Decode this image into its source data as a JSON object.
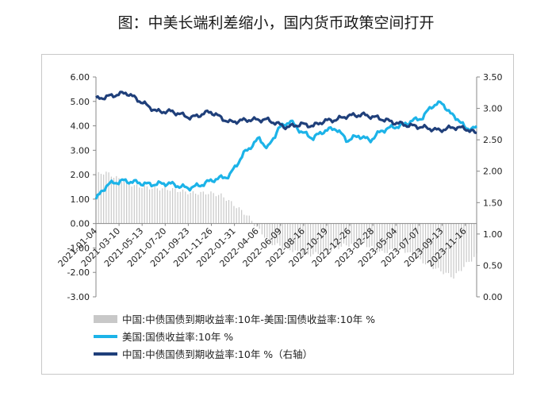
{
  "title": "图：中美长端利差缩小，国内货币政策空间打开",
  "chart_data": {
    "type": "line",
    "x_tick_labels": [
      "2021-01-04",
      "2021-03-10",
      "2021-05-13",
      "2021-07-20",
      "2021-09-23",
      "2021-11-26",
      "2022-01-31",
      "2022-04-06",
      "2022-06-09",
      "2022-08-16",
      "2022-10-19",
      "2022-12-26",
      "2023-02-28",
      "2023-05-04",
      "2023-07-07",
      "2023-09-13",
      "2023-11-16"
    ],
    "y_left": {
      "ylim": [
        -3,
        6
      ],
      "tick_labels": [
        "6.00",
        "5.00",
        "4.00",
        "3.00",
        "2.00",
        "1.00",
        "0.00",
        "-1.00",
        "-2.00",
        "-3.00"
      ]
    },
    "y_right": {
      "ylim": [
        0,
        3.5
      ],
      "tick_labels": [
        "3.50",
        "3.00",
        "2.50",
        "2.00",
        "1.50",
        "1.00",
        "0.50",
        "0.00"
      ]
    },
    "series": [
      {
        "name": "中国:中债国债到期收益率:10年-美国:国债收益率:10年 %",
        "type": "bar",
        "axis": "left",
        "color": "#c8c8c8",
        "x": [
          0,
          0.025,
          0.05,
          0.1,
          0.15,
          0.2,
          0.25,
          0.3,
          0.33,
          0.36,
          0.4,
          0.43,
          0.46,
          0.5,
          0.55,
          0.6,
          0.65,
          0.7,
          0.75,
          0.8,
          0.85,
          0.9,
          0.94,
          0.97,
          1.0
        ],
        "values": [
          2.0,
          2.1,
          1.9,
          1.55,
          1.45,
          1.4,
          1.25,
          1.25,
          1.15,
          0.8,
          0.3,
          -0.3,
          -0.8,
          -1.0,
          -1.3,
          -1.2,
          -0.9,
          -0.8,
          -1.2,
          -1.0,
          -1.5,
          -1.9,
          -2.2,
          -1.7,
          -1.3
        ]
      },
      {
        "name": "美国:国债收益率:10年 %",
        "type": "line",
        "axis": "left",
        "color": "#1cb3e8",
        "x": [
          0,
          0.03,
          0.07,
          0.1,
          0.14,
          0.19,
          0.24,
          0.27,
          0.31,
          0.35,
          0.39,
          0.43,
          0.45,
          0.48,
          0.51,
          0.54,
          0.57,
          0.6,
          0.63,
          0.66,
          0.69,
          0.72,
          0.75,
          0.78,
          0.8,
          0.83,
          0.86,
          0.88,
          0.91,
          0.93,
          0.95,
          0.97,
          1.0
        ],
        "values": [
          1.0,
          1.6,
          1.75,
          1.7,
          1.6,
          1.65,
          1.45,
          1.55,
          1.8,
          1.95,
          2.9,
          3.5,
          3.05,
          3.9,
          4.2,
          3.75,
          3.5,
          3.8,
          3.9,
          3.4,
          3.6,
          3.4,
          3.8,
          3.95,
          4.0,
          4.2,
          4.35,
          4.8,
          4.95,
          4.5,
          4.3,
          3.9,
          3.9
        ]
      },
      {
        "name": "中国:中债国债到期收益率:10年 %（右轴）",
        "type": "line",
        "axis": "right",
        "color": "#1f3f7a",
        "x": [
          0,
          0.04,
          0.08,
          0.12,
          0.16,
          0.2,
          0.25,
          0.3,
          0.35,
          0.4,
          0.45,
          0.5,
          0.54,
          0.57,
          0.6,
          0.63,
          0.66,
          0.7,
          0.74,
          0.78,
          0.82,
          0.86,
          0.9,
          0.94,
          0.97,
          1.0
        ],
        "values": [
          3.15,
          3.2,
          3.25,
          3.1,
          2.95,
          2.95,
          2.85,
          2.95,
          2.78,
          2.82,
          2.82,
          2.7,
          2.75,
          2.72,
          2.8,
          2.82,
          2.88,
          2.9,
          2.85,
          2.78,
          2.73,
          2.7,
          2.65,
          2.7,
          2.68,
          2.6
        ]
      }
    ]
  },
  "legend": [
    "中国:中债国债到期收益率:10年-美国:国债收益率:10年 %",
    "美国:国债收益率:10年 %",
    "中国:中债国债到期收益率:10年 %（右轴）"
  ]
}
